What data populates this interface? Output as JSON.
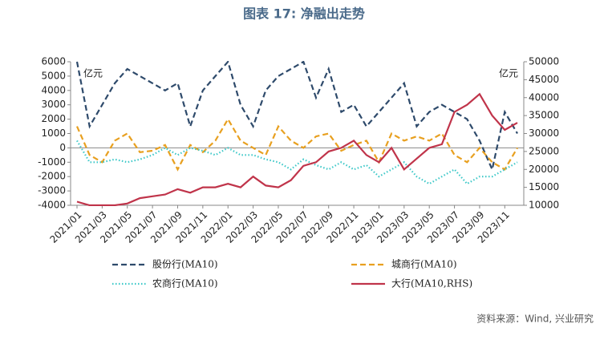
{
  "chart_data": {
    "type": "line",
    "title": "图表 17: 净融出走势",
    "y_label": "亿元",
    "y2_label": "亿元",
    "source": "资料来源：Wind, 兴业研究",
    "categories": [
      "2021/01",
      null,
      "2021/03",
      null,
      "2021/05",
      null,
      "2021/07",
      null,
      "2021/09",
      null,
      "2021/11",
      null,
      "2022/01",
      null,
      "2022/03",
      null,
      "2022/05",
      null,
      "2022/07",
      null,
      "2022/09",
      null,
      "2022/11",
      null,
      "2023/01",
      null,
      "2023/03",
      null,
      "2023/05",
      null,
      "2023/07",
      null,
      "2023/09",
      null,
      "2023/11",
      null
    ],
    "ylim": [
      -4000,
      6000
    ],
    "yticks": [
      -4000,
      -3000,
      -2000,
      -1000,
      0,
      1000,
      2000,
      3000,
      4000,
      5000,
      6000
    ],
    "y2lim": [
      10000,
      50000
    ],
    "y2ticks": [
      10000,
      15000,
      20000,
      25000,
      30000,
      35000,
      40000,
      45000,
      50000
    ],
    "series": [
      {
        "name": "股份行(MA10)",
        "color": "#2e4a6b",
        "line_style": "dashed",
        "values": [
          6000,
          1500,
          3000,
          4500,
          5500,
          5000,
          4500,
          4000,
          4500,
          1500,
          4000,
          5000,
          6000,
          3000,
          1500,
          4000,
          5000,
          5500,
          6000,
          3500,
          5500,
          2500,
          3000,
          1500,
          2500,
          3500,
          4500,
          1500,
          2500,
          3000,
          2500,
          2000,
          500,
          -1500,
          2500,
          1000
        ]
      },
      {
        "name": "城商行(MA10)",
        "color": "#e8a020",
        "line_style": "dashed",
        "values": [
          1500,
          -500,
          -1000,
          500,
          1000,
          -300,
          -200,
          200,
          -1500,
          200,
          -300,
          500,
          2000,
          500,
          0,
          -500,
          1500,
          500,
          0,
          800,
          1000,
          -200,
          200,
          500,
          -1000,
          1000,
          500,
          800,
          500,
          1000,
          -500,
          -1000,
          0,
          -1000,
          -1500,
          0
        ]
      },
      {
        "name": "农商行(MA10)",
        "color": "#3cc8c8",
        "line_style": "dotted",
        "values": [
          500,
          -1000,
          -1000,
          -800,
          -1000,
          -800,
          -500,
          0,
          -500,
          0,
          -200,
          -500,
          0,
          -500,
          -500,
          -800,
          -1000,
          -1500,
          -800,
          -1200,
          -1500,
          -1000,
          -1500,
          -1200,
          -2000,
          -1500,
          -1000,
          -2000,
          -2500,
          -2000,
          -1500,
          -2500,
          -2000,
          -2000,
          -1500,
          -1000
        ]
      },
      {
        "name": "大行(MA10,RHS)",
        "color": "#c0344a",
        "line_style": "solid",
        "axis": "y2",
        "values": [
          11000,
          10000,
          10000,
          10000,
          10500,
          12000,
          12500,
          13000,
          14500,
          13500,
          15000,
          15000,
          16000,
          15000,
          18000,
          15500,
          15000,
          17000,
          21000,
          22000,
          25000,
          26000,
          28000,
          24000,
          22000,
          26000,
          20000,
          23000,
          26000,
          27000,
          36000,
          38000,
          41000,
          35000,
          31000,
          33000
        ]
      }
    ]
  }
}
